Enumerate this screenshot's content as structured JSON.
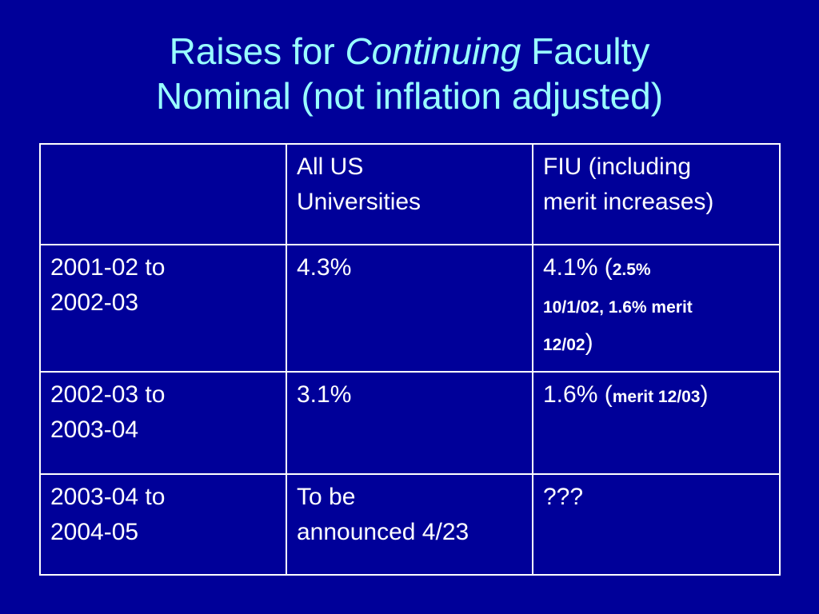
{
  "title": {
    "line1_pre": "Raises for ",
    "line1_emph": "Continuing",
    "line1_post": " Faculty",
    "line2": "Nominal (not inflation adjusted)"
  },
  "table": {
    "header": {
      "col1": "",
      "col2": [
        "All US",
        "Universities"
      ],
      "col3": [
        "FIU (including",
        "merit increases)"
      ]
    },
    "rows": [
      {
        "period": [
          "2001-02 to",
          "2002-03"
        ],
        "all_us": [
          "4.3%"
        ],
        "fiu_main": "4.1% (",
        "fiu_small_a": "2.5%",
        "fiu_small_b": "10/1/02, 1.6% merit",
        "fiu_small_c": "12/02",
        "fiu_close": ")"
      },
      {
        "period": [
          "2002-03 to",
          "2003-04"
        ],
        "all_us": [
          "3.1%"
        ],
        "fiu_main": "1.6% (",
        "fiu_small": "merit 12/03",
        "fiu_close": ")"
      },
      {
        "period": [
          "2003-04 to",
          "2004-05"
        ],
        "all_us": [
          "To be",
          "announced 4/23"
        ],
        "fiu": "???"
      }
    ]
  }
}
